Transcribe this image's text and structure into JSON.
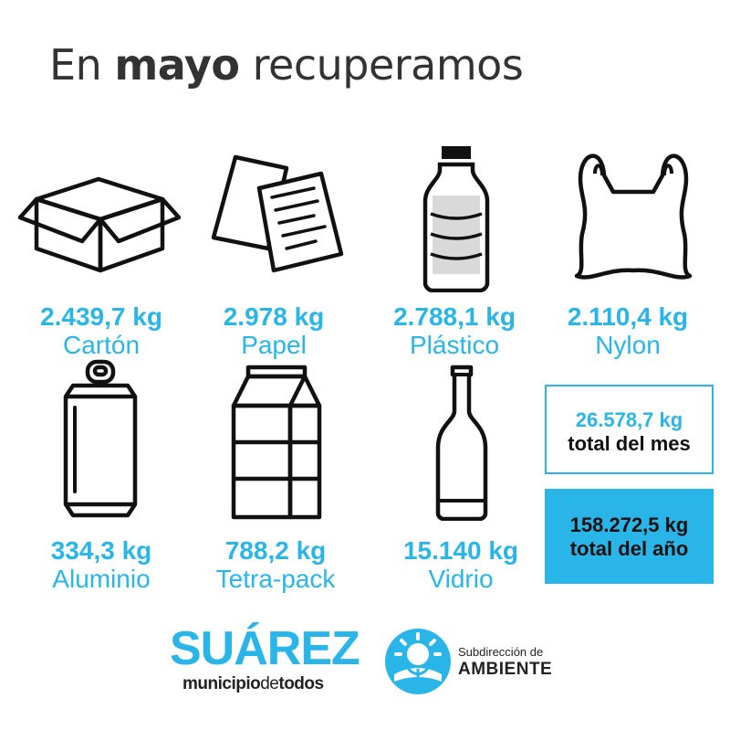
{
  "title": {
    "prefix": "En",
    "highlight": "mayo",
    "suffix": "recuperamos"
  },
  "materials": [
    {
      "kg": "2.439,7 kg",
      "name": "Cartón",
      "icon": "box-icon"
    },
    {
      "kg": "2.978 kg",
      "name": "Papel",
      "icon": "paper-icon"
    },
    {
      "kg": "2.788,1 kg",
      "name": "Plástico",
      "icon": "plastic-bottle-icon"
    },
    {
      "kg": "2.110,4 kg",
      "name": "Nylon",
      "icon": "plastic-bag-icon"
    },
    {
      "kg": "334,3 kg",
      "name": "Aluminio",
      "icon": "can-icon"
    },
    {
      "kg": "788,2 kg",
      "name": "Tetra-pack",
      "icon": "carton-icon"
    },
    {
      "kg": "15.140 kg",
      "name": "Vidrio",
      "icon": "glass-bottle-icon"
    }
  ],
  "totals": {
    "month": {
      "kg": "26.578,7 kg",
      "label": "total del mes"
    },
    "year": {
      "kg": "158.272,5 kg",
      "label": "total del año"
    }
  },
  "footer": {
    "brand": "SUÁREZ",
    "slogan": {
      "a": "municipio",
      "b": "de",
      "c": "todos"
    },
    "sub": "Subdirección de",
    "ambiente": "AMBIENTE"
  },
  "colors": {
    "accent": "#29b5e8",
    "text": "#333333"
  }
}
